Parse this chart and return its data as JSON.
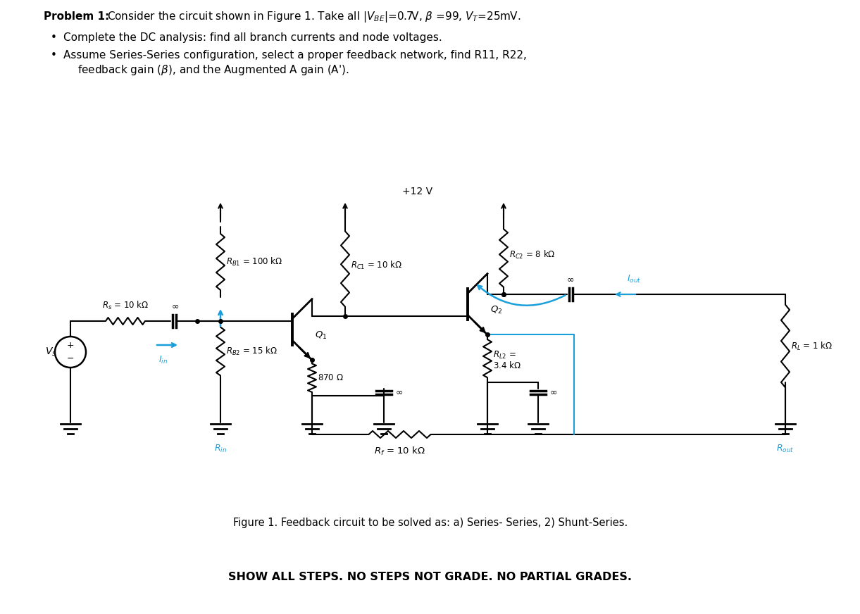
{
  "bg_color": "#ffffff",
  "text_color": "#000000",
  "blue_color": "#1a9fdb",
  "line_color": "#000000",
  "title_bold": "Problem 1:",
  "title_rest": "Consider the circuit shown in Figure 1. Take all |V_{BE}|=0.7V, \\beta =99, V_T=25mV.",
  "bullet1": "Complete the DC analysis: find all branch currents and node voltages.",
  "bullet2a": "Assume Series-Series configuration, select a proper feedback network, find R11, R22,",
  "bullet2b": "feedback gain (\\beta), and the Augmented A gain (A').",
  "figure_caption": "Figure 1. Feedback circuit to be solved as: a) Series- Series, 2) Shunt-Series.",
  "footer": "SHOW ALL STEPS. NO STEPS NOT GRADE. NO PARTIAL GRADES."
}
